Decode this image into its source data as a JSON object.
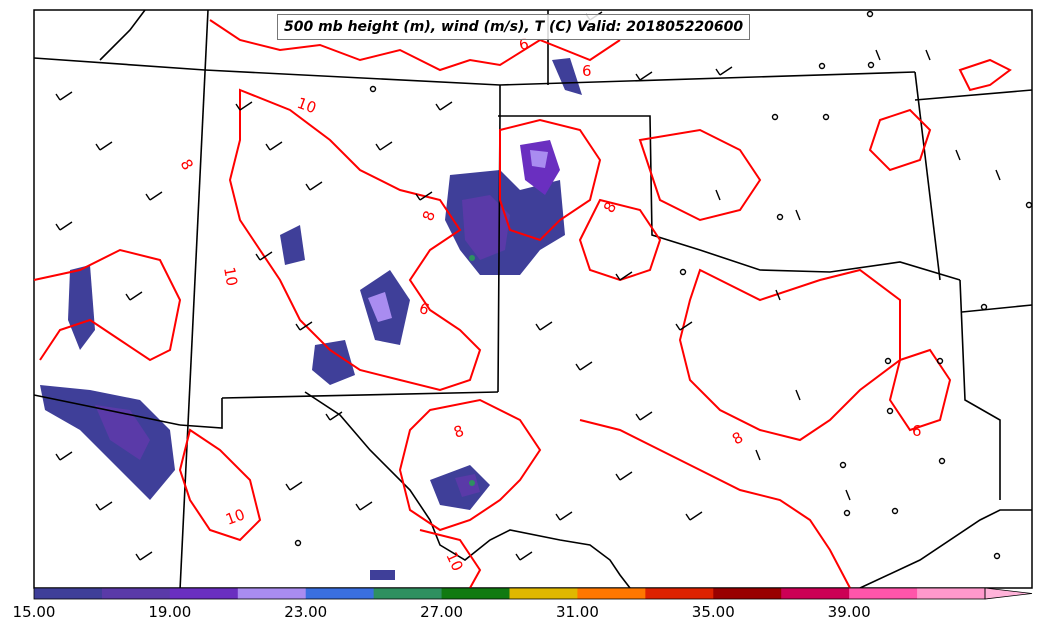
{
  "title": "500 mb height (m), wind (m/s), T (C) Valid: 201805220600",
  "contour_labels": [
    "6",
    "6",
    "6",
    "6",
    "8",
    "8",
    "8",
    "8",
    "8",
    "10",
    "10",
    "10",
    "10"
  ],
  "colorbar": {
    "colors": [
      "#3f3f99",
      "#5a3aa8",
      "#6a2fc0",
      "#a98cf0",
      "#3a6fe0",
      "#2e9060",
      "#117a11",
      "#e0b800",
      "#ff7700",
      "#dd2200",
      "#990000",
      "#cc0055",
      "#ff55aa",
      "#ff99cc"
    ],
    "tick_labels": [
      "15.00",
      "19.00",
      "23.00",
      "27.00",
      "31.00",
      "35.00",
      "39.00"
    ]
  },
  "colors": {
    "contour": "#ff0000",
    "borders": "#000000",
    "barbs": "#000000"
  }
}
